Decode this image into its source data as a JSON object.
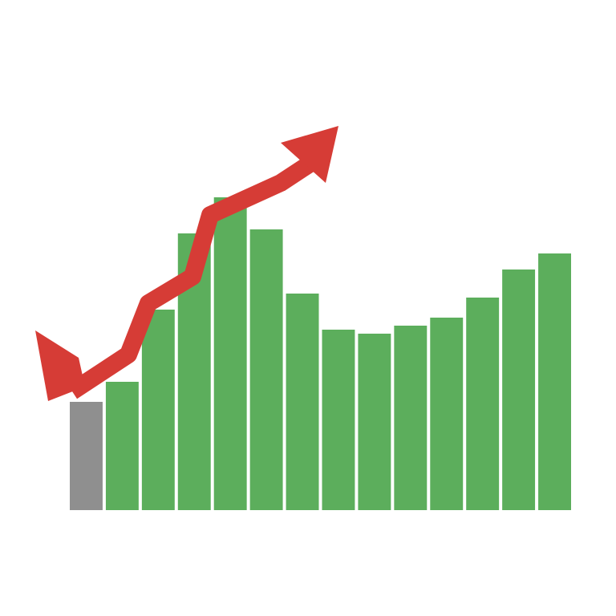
{
  "chart_data": {
    "type": "bar",
    "categories": [
      null,
      null,
      null,
      null,
      null,
      null,
      null,
      null,
      null,
      null,
      null,
      null,
      null,
      null
    ],
    "values": [
      27,
      32,
      50,
      69,
      78,
      70,
      54,
      45,
      44,
      46,
      48,
      53,
      60,
      64
    ],
    "colors": [
      "#8f8f8f",
      "#5cae5c",
      "#5cae5c",
      "#5cae5c",
      "#5cae5c",
      "#5cae5c",
      "#5cae5c",
      "#5cae5c",
      "#5cae5c",
      "#5cae5c",
      "#5cae5c",
      "#5cae5c",
      "#5cae5c",
      "#5cae5c"
    ],
    "ylim": [
      0,
      100
    ],
    "grid": false
  }
}
